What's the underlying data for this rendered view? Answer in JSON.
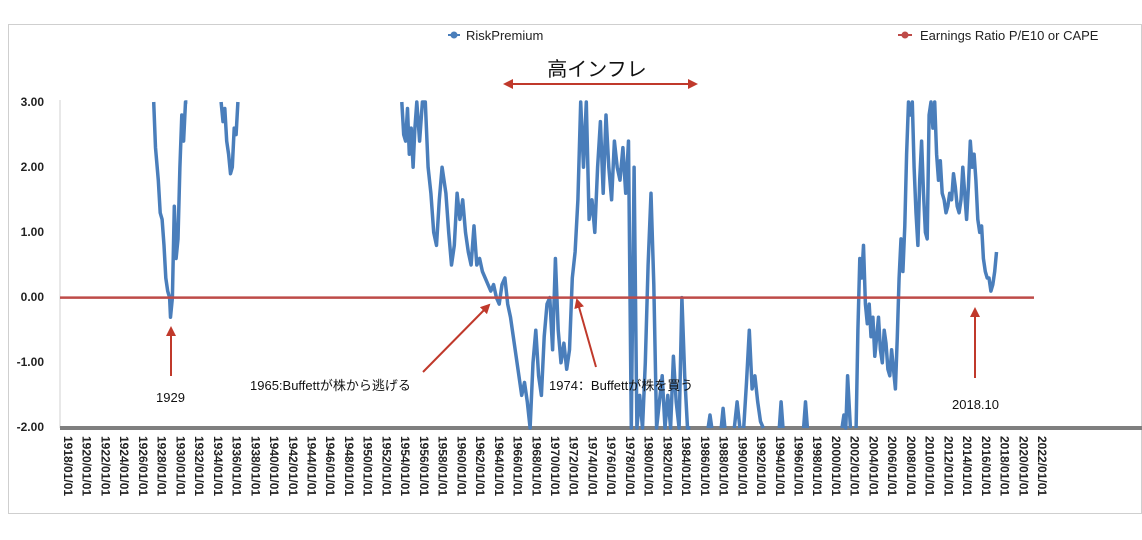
{
  "chart_data": {
    "type": "line",
    "ylim": [
      -2,
      3
    ],
    "yticks": [
      "3.00",
      "2.00",
      "1.00",
      "0.00",
      "-1.00",
      "-2.00"
    ],
    "xlim": [
      1918,
      2022
    ],
    "xtick_labels": [
      "1918/01/01",
      "1920/01/01",
      "1922/01/01",
      "1924/01/01",
      "1926/01/01",
      "1928/01/01",
      "1930/01/01",
      "1932/01/01",
      "1934/01/01",
      "1936/01/01",
      "1938/01/01",
      "1940/01/01",
      "1942/01/01",
      "1944/01/01",
      "1946/01/01",
      "1948/01/01",
      "1950/01/01",
      "1952/01/01",
      "1954/01/01",
      "1956/01/01",
      "1958/01/01",
      "1960/01/01",
      "1962/01/01",
      "1964/01/01",
      "1966/01/01",
      "1968/01/01",
      "1970/01/01",
      "1972/01/01",
      "1974/01/01",
      "1976/01/01",
      "1978/01/01",
      "1980/01/01",
      "1982/01/01",
      "1984/01/01",
      "1986/01/01",
      "1988/01/01",
      "1990/01/01",
      "1992/01/01",
      "1994/01/01",
      "1996/01/01",
      "1998/01/01",
      "2000/01/01",
      "2002/01/01",
      "2004/01/01",
      "2006/01/01",
      "2008/01/01",
      "2010/01/01",
      "2012/01/01",
      "2014/01/01",
      "2016/01/01",
      "2018/01/01",
      "2020/01/01",
      "2022/01/01"
    ],
    "grid": false,
    "legend_placement": "top",
    "series": [
      {
        "name": "RiskPremium",
        "color": "#4a7ebb",
        "segments": [
          [
            [
              1928.0,
              3.0
            ],
            [
              1928.2,
              2.3
            ],
            [
              1928.5,
              1.8
            ],
            [
              1928.7,
              1.3
            ],
            [
              1928.9,
              1.2
            ],
            [
              1929.1,
              0.8
            ],
            [
              1929.3,
              0.3
            ],
            [
              1929.5,
              0.1
            ],
            [
              1929.7,
              0.0
            ],
            [
              1929.8,
              -0.3
            ],
            [
              1930.0,
              0.0
            ],
            [
              1930.2,
              1.4
            ],
            [
              1930.4,
              0.6
            ],
            [
              1930.6,
              0.9
            ],
            [
              1930.8,
              2.0
            ],
            [
              1931.0,
              2.8
            ],
            [
              1931.2,
              2.4
            ],
            [
              1931.4,
              3.0
            ],
            [
              1931.6,
              3.0
            ]
          ],
          [
            [
              1935.2,
              3.0
            ],
            [
              1935.4,
              2.7
            ],
            [
              1935.6,
              2.9
            ],
            [
              1935.8,
              2.4
            ],
            [
              1936.0,
              2.2
            ],
            [
              1936.2,
              1.9
            ],
            [
              1936.4,
              2.0
            ],
            [
              1936.6,
              2.6
            ],
            [
              1936.8,
              2.5
            ],
            [
              1937.0,
              3.0
            ]
          ],
          [
            [
              1954.5,
              3.0
            ],
            [
              1954.7,
              2.5
            ],
            [
              1954.9,
              2.4
            ],
            [
              1955.1,
              2.9
            ],
            [
              1955.3,
              2.2
            ],
            [
              1955.5,
              2.6
            ],
            [
              1955.7,
              2.0
            ],
            [
              1955.9,
              2.6
            ],
            [
              1956.1,
              3.0
            ],
            [
              1956.4,
              2.4
            ],
            [
              1956.7,
              3.0
            ],
            [
              1957.0,
              3.0
            ],
            [
              1957.3,
              2.0
            ],
            [
              1957.6,
              1.6
            ],
            [
              1957.9,
              1.0
            ],
            [
              1958.2,
              0.8
            ],
            [
              1958.5,
              1.5
            ],
            [
              1958.8,
              2.0
            ],
            [
              1959.0,
              1.8
            ],
            [
              1959.2,
              1.6
            ],
            [
              1959.5,
              1.0
            ],
            [
              1959.8,
              0.5
            ],
            [
              1960.1,
              0.8
            ],
            [
              1960.4,
              1.6
            ],
            [
              1960.7,
              1.2
            ],
            [
              1961.0,
              1.5
            ],
            [
              1961.3,
              1.0
            ],
            [
              1961.6,
              0.7
            ],
            [
              1961.9,
              0.5
            ],
            [
              1962.2,
              1.1
            ],
            [
              1962.5,
              0.5
            ],
            [
              1962.8,
              0.6
            ],
            [
              1963.1,
              0.4
            ],
            [
              1963.4,
              0.3
            ],
            [
              1963.7,
              0.2
            ],
            [
              1964.0,
              0.1
            ],
            [
              1964.3,
              0.2
            ],
            [
              1964.6,
              0.0
            ],
            [
              1964.9,
              -0.1
            ],
            [
              1965.2,
              0.2
            ],
            [
              1965.5,
              0.3
            ],
            [
              1965.8,
              -0.1
            ],
            [
              1966.1,
              -0.3
            ],
            [
              1966.4,
              -0.6
            ],
            [
              1966.7,
              -0.9
            ],
            [
              1967.0,
              -1.2
            ],
            [
              1967.3,
              -1.5
            ],
            [
              1967.6,
              -1.3
            ],
            [
              1967.9,
              -1.6
            ],
            [
              1968.2,
              -2.0
            ],
            [
              1968.5,
              -1.0
            ],
            [
              1968.8,
              -0.5
            ],
            [
              1969.1,
              -1.2
            ],
            [
              1969.4,
              -1.5
            ],
            [
              1969.7,
              -0.6
            ],
            [
              1970.0,
              -0.1
            ],
            [
              1970.3,
              0.0
            ],
            [
              1970.6,
              -0.8
            ],
            [
              1970.9,
              0.6
            ],
            [
              1971.2,
              -0.5
            ],
            [
              1971.5,
              -1.0
            ],
            [
              1971.8,
              -0.7
            ],
            [
              1972.1,
              -1.1
            ],
            [
              1972.4,
              -0.8
            ],
            [
              1972.7,
              0.3
            ],
            [
              1973.0,
              0.7
            ],
            [
              1973.3,
              1.5
            ],
            [
              1973.6,
              3.0
            ],
            [
              1973.9,
              2.0
            ],
            [
              1974.2,
              3.0
            ],
            [
              1974.5,
              1.2
            ],
            [
              1974.8,
              1.5
            ],
            [
              1975.1,
              1.0
            ],
            [
              1975.4,
              2.0
            ],
            [
              1975.7,
              2.7
            ],
            [
              1976.0,
              1.6
            ],
            [
              1976.3,
              2.8
            ],
            [
              1976.6,
              2.0
            ],
            [
              1976.9,
              1.5
            ],
            [
              1977.2,
              2.4
            ],
            [
              1977.5,
              2.0
            ],
            [
              1977.8,
              1.8
            ],
            [
              1978.1,
              2.3
            ],
            [
              1978.4,
              1.6
            ],
            [
              1978.7,
              2.4
            ],
            [
              1979.0,
              -2.0
            ],
            [
              1979.3,
              2.0
            ],
            [
              1979.6,
              -2.0
            ],
            [
              1979.9,
              -1.5
            ],
            [
              1980.2,
              -2.0
            ],
            [
              1980.5,
              -1.0
            ],
            [
              1980.8,
              0.5
            ],
            [
              1981.1,
              1.6
            ],
            [
              1981.4,
              0.2
            ],
            [
              1981.7,
              -2.0
            ],
            [
              1982.0,
              -1.6
            ],
            [
              1982.3,
              -1.2
            ],
            [
              1982.6,
              -2.0
            ],
            [
              1982.9,
              -1.5
            ],
            [
              1983.2,
              -2.0
            ],
            [
              1983.5,
              -0.9
            ],
            [
              1983.8,
              -1.6
            ],
            [
              1984.1,
              -2.0
            ],
            [
              1984.4,
              0.0
            ],
            [
              1984.7,
              -1.2
            ],
            [
              1985.0,
              -2.0
            ],
            [
              1985.3,
              -2.0
            ]
          ],
          [
            [
              1987.2,
              -2.0
            ],
            [
              1987.4,
              -1.8
            ],
            [
              1987.6,
              -2.0
            ]
          ],
          [
            [
              1988.6,
              -2.0
            ],
            [
              1988.8,
              -1.7
            ],
            [
              1989.0,
              -2.0
            ]
          ],
          [
            [
              1990.0,
              -2.0
            ],
            [
              1990.3,
              -1.6
            ],
            [
              1990.6,
              -2.0
            ]
          ],
          [
            [
              1991.0,
              -2.0
            ],
            [
              1991.3,
              -1.3
            ],
            [
              1991.6,
              -0.5
            ],
            [
              1991.9,
              -1.4
            ],
            [
              1992.2,
              -1.2
            ],
            [
              1992.5,
              -1.6
            ],
            [
              1992.8,
              -1.9
            ],
            [
              1993.1,
              -2.0
            ]
          ],
          [
            [
              1994.8,
              -2.0
            ],
            [
              1995.0,
              -1.6
            ],
            [
              1995.2,
              -2.0
            ]
          ],
          [
            [
              1997.4,
              -2.0
            ],
            [
              1997.6,
              -1.6
            ],
            [
              1997.8,
              -2.0
            ]
          ],
          [
            [
              2001.5,
              -2.0
            ],
            [
              2001.7,
              -1.8
            ],
            [
              2001.9,
              -2.0
            ],
            [
              2002.1,
              -1.2
            ],
            [
              2002.4,
              -2.0
            ]
          ],
          [
            [
              2003.0,
              -2.0
            ],
            [
              2003.2,
              -0.5
            ],
            [
              2003.4,
              0.6
            ],
            [
              2003.6,
              0.3
            ],
            [
              2003.8,
              0.8
            ],
            [
              2004.0,
              -0.1
            ],
            [
              2004.2,
              -0.4
            ],
            [
              2004.4,
              -0.1
            ],
            [
              2004.6,
              -0.6
            ],
            [
              2004.8,
              -0.3
            ],
            [
              2005.0,
              -0.9
            ],
            [
              2005.2,
              -0.6
            ],
            [
              2005.4,
              -0.3
            ],
            [
              2005.6,
              -0.8
            ],
            [
              2005.8,
              -1.0
            ],
            [
              2006.0,
              -0.5
            ],
            [
              2006.2,
              -0.7
            ],
            [
              2006.4,
              -1.1
            ],
            [
              2006.6,
              -1.2
            ],
            [
              2006.8,
              -0.8
            ],
            [
              2007.0,
              -1.1
            ],
            [
              2007.2,
              -1.4
            ],
            [
              2007.4,
              -0.6
            ],
            [
              2007.6,
              0.3
            ],
            [
              2007.8,
              0.9
            ],
            [
              2008.0,
              0.4
            ],
            [
              2008.2,
              1.1
            ],
            [
              2008.4,
              2.2
            ],
            [
              2008.6,
              3.0
            ],
            [
              2008.8,
              2.8
            ],
            [
              2009.0,
              3.0
            ],
            [
              2009.2,
              2.0
            ],
            [
              2009.4,
              1.3
            ],
            [
              2009.6,
              0.8
            ],
            [
              2009.8,
              1.8
            ],
            [
              2010.0,
              2.4
            ],
            [
              2010.2,
              1.6
            ],
            [
              2010.4,
              1.0
            ],
            [
              2010.6,
              0.9
            ],
            [
              2010.8,
              2.8
            ],
            [
              2011.0,
              3.0
            ],
            [
              2011.2,
              2.6
            ],
            [
              2011.4,
              3.0
            ],
            [
              2011.6,
              2.2
            ],
            [
              2011.8,
              1.8
            ],
            [
              2012.0,
              2.1
            ],
            [
              2012.2,
              1.6
            ],
            [
              2012.4,
              1.5
            ],
            [
              2012.6,
              1.3
            ],
            [
              2012.8,
              1.4
            ],
            [
              2013.0,
              1.6
            ],
            [
              2013.2,
              1.5
            ],
            [
              2013.4,
              1.9
            ],
            [
              2013.6,
              1.7
            ],
            [
              2013.8,
              1.4
            ],
            [
              2014.0,
              1.3
            ],
            [
              2014.2,
              1.5
            ],
            [
              2014.4,
              2.0
            ],
            [
              2014.6,
              1.6
            ],
            [
              2014.8,
              1.2
            ],
            [
              2015.0,
              1.7
            ],
            [
              2015.2,
              2.4
            ],
            [
              2015.4,
              2.0
            ],
            [
              2015.6,
              2.2
            ],
            [
              2015.8,
              1.8
            ],
            [
              2016.0,
              1.2
            ],
            [
              2016.2,
              1.0
            ],
            [
              2016.4,
              1.1
            ],
            [
              2016.6,
              0.6
            ],
            [
              2016.8,
              0.4
            ],
            [
              2017.0,
              0.3
            ],
            [
              2017.2,
              0.3
            ],
            [
              2017.4,
              0.1
            ],
            [
              2017.6,
              0.2
            ],
            [
              2017.8,
              0.4
            ],
            [
              2018.0,
              0.7
            ]
          ]
        ]
      },
      {
        "name": "Earnings Ratio P/E10 or CAPE",
        "color": "#be4b48",
        "points": [
          [
            1918.0,
            0.0
          ],
          [
            2022.0,
            0.0
          ]
        ]
      }
    ],
    "annotations": {
      "banner": "高インフレ",
      "a1929": "1929",
      "a1965": "1965:Buffettが株から逃げる",
      "a1974": "1974：Buffettが株を買う",
      "a2018": "2018.10"
    }
  }
}
